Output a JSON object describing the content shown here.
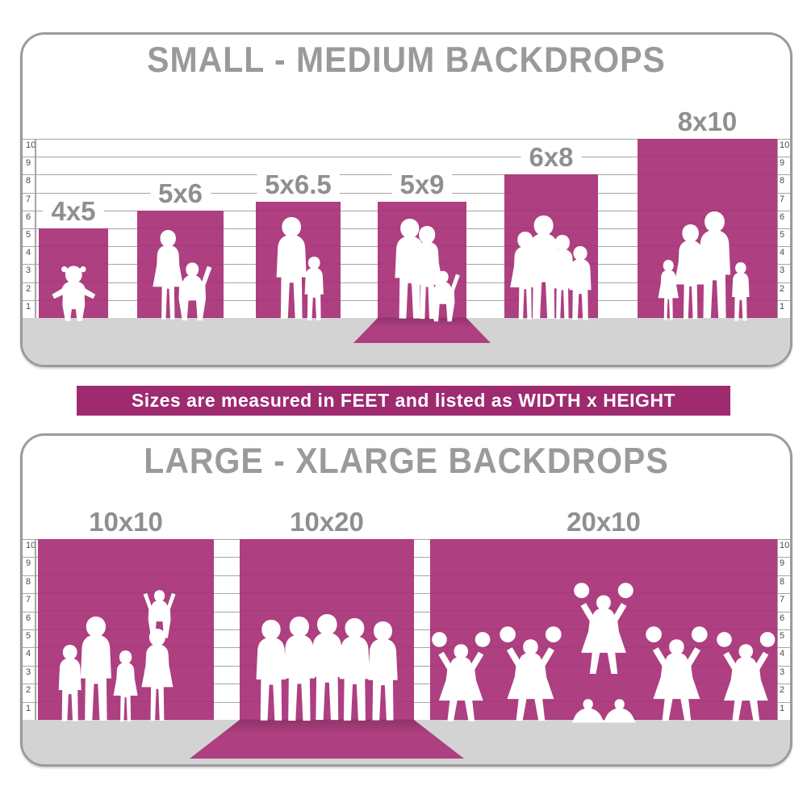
{
  "banner": {
    "text": "Sizes are measured in FEET and listed as WIDTH x HEIGHT"
  },
  "colors": {
    "backdrop_magenta": "#ae3f81",
    "banner_magenta": "#9e2a6f",
    "floor_gray": "#d3d3d3",
    "title_gray": "#9a9a9a",
    "label_gray": "#8f8f8f",
    "panel_border_gray": "#9b9b9b",
    "tick_gray": "#4b4b4b",
    "gridline_gray": "#a5a5a5",
    "figure_white": "#ffffff"
  },
  "chart_data": [
    {
      "type": "bar",
      "title": "SMALL - MEDIUM BACKDROPS",
      "categories": [
        "4x5",
        "5x6",
        "5x6.5",
        "5x9",
        "6x8",
        "8x10"
      ],
      "series": [
        {
          "name": "width_ft",
          "values": [
            4,
            5,
            5,
            5,
            6,
            8
          ]
        },
        {
          "name": "height_ft",
          "values": [
            5,
            6,
            6.5,
            9,
            8,
            10
          ]
        },
        {
          "name": "displayed_hang_height_ft",
          "values": [
            5,
            6,
            6.5,
            6.5,
            8,
            10
          ]
        }
      ],
      "ylabel": "feet",
      "ylim": [
        0,
        10
      ],
      "yticks": [
        1,
        2,
        3,
        4,
        5,
        6,
        7,
        8,
        9,
        10
      ],
      "grid": true,
      "legend": "none",
      "floor_sweep_categories": [
        "5x9"
      ],
      "figures": [
        [
          "toddler"
        ],
        [
          "woman",
          "child"
        ],
        [
          "man",
          "boy"
        ],
        [
          "man",
          "woman",
          "child"
        ],
        [
          "woman",
          "man",
          "woman",
          "boy"
        ],
        [
          "girl",
          "woman",
          "man",
          "boy"
        ]
      ]
    },
    {
      "type": "bar",
      "title": "LARGE - XLARGE BACKDROPS",
      "categories": [
        "10x10",
        "10x20",
        "20x10"
      ],
      "series": [
        {
          "name": "width_ft",
          "values": [
            10,
            10,
            20
          ]
        },
        {
          "name": "height_ft",
          "values": [
            10,
            20,
            10
          ]
        },
        {
          "name": "displayed_hang_height_ft",
          "values": [
            10,
            10,
            10
          ]
        }
      ],
      "ylabel": "feet",
      "ylim": [
        0,
        10
      ],
      "yticks": [
        1,
        2,
        3,
        4,
        5,
        6,
        7,
        8,
        9,
        10
      ],
      "grid": true,
      "legend": "none",
      "floor_sweep_categories": [
        "10x20"
      ],
      "figures": [
        [
          "boy",
          "man",
          "girl",
          "woman",
          "child-on-shoulders"
        ],
        [
          "man",
          "man",
          "man",
          "man",
          "man"
        ],
        [
          "cheerleader",
          "cheerleader",
          "base",
          "base",
          "flyer",
          "cheerleader",
          "cheerleader"
        ]
      ]
    }
  ]
}
